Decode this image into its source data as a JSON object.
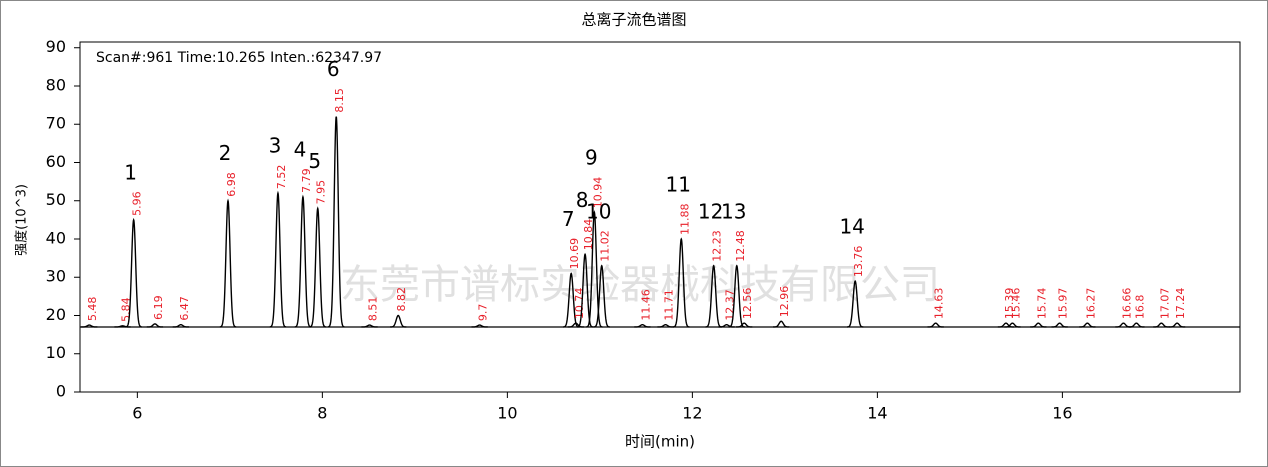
{
  "chart_data": {
    "type": "line",
    "title": "总离子流色谱图",
    "x_label": "时间(min)",
    "y_label": "强度(10^3)",
    "annotation": "Scan#:961  Time:10.265  Inten.:62347.97",
    "watermark": "东莞市谱标实验器械科技有限公司",
    "xlim": [
      5.38,
      17.92
    ],
    "ylim": [
      0,
      91.5
    ],
    "xticks": [
      6,
      8,
      10,
      12,
      14,
      16
    ],
    "yticks": [
      0,
      10,
      20,
      30,
      40,
      50,
      60,
      70,
      80,
      90
    ],
    "baseline": 17,
    "series": [
      {
        "name": "TIC",
        "color": "#000000",
        "x": [
          5.48,
          5.84,
          5.96,
          6.19,
          6.47,
          6.98,
          7.52,
          7.79,
          7.95,
          8.15,
          8.51,
          8.82,
          9.7,
          10.69,
          10.74,
          10.84,
          10.94,
          11.02,
          11.46,
          11.71,
          11.88,
          12.23,
          12.37,
          12.48,
          12.56,
          12.96,
          13.76,
          14.63,
          15.39,
          15.46,
          15.74,
          15.97,
          16.27,
          16.66,
          16.8,
          17.07,
          17.24
        ],
        "values": [
          17.5,
          17.3,
          45,
          17.8,
          17.6,
          50,
          52,
          51,
          48,
          72,
          17.5,
          20,
          17.5,
          31,
          18,
          36,
          47,
          33,
          17.6,
          17.6,
          40,
          33,
          17.6,
          33,
          18,
          18.5,
          29,
          18,
          18,
          18,
          18,
          18,
          18,
          18,
          18,
          18,
          18
        ],
        "peak_numbers": [
          null,
          null,
          1,
          null,
          null,
          2,
          3,
          4,
          5,
          6,
          null,
          null,
          null,
          7,
          null,
          8,
          9,
          10,
          null,
          null,
          11,
          12,
          null,
          13,
          null,
          null,
          14,
          null,
          null,
          null,
          null,
          null,
          null,
          null,
          null,
          null,
          null
        ]
      }
    ]
  }
}
